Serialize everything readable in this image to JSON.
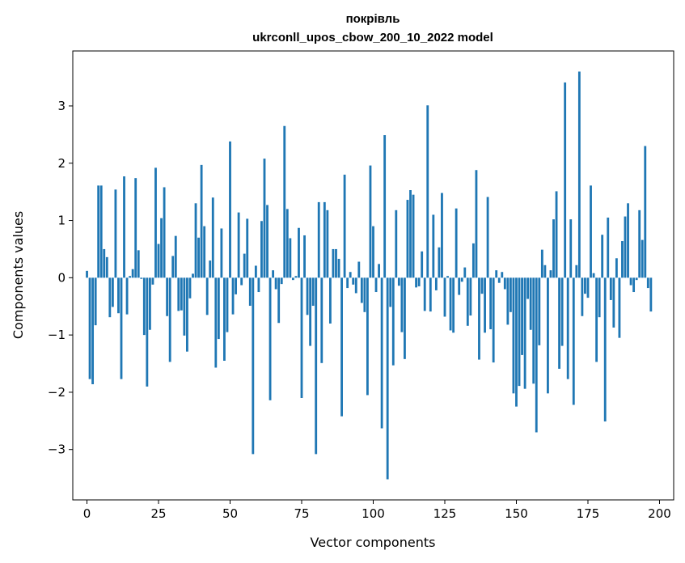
{
  "chart_data": {
    "type": "bar",
    "title": "покрівль",
    "subtitle": "ukrconll_upos_cbow_200_10_2022 model",
    "xlabel": "Vector components",
    "ylabel": "Components values",
    "xlim": [
      -4.95,
      204.95
    ],
    "ylim": [
      -3.88,
      3.96
    ],
    "xticks": [
      0,
      25,
      50,
      75,
      100,
      125,
      150,
      175,
      200
    ],
    "yticks": [
      -3,
      -2,
      -1,
      0,
      1,
      2,
      3
    ],
    "bar_color": "#1f77b4",
    "grid": false,
    "values": [
      0.12,
      -1.77,
      -1.86,
      -0.83,
      1.61,
      1.61,
      0.5,
      0.36,
      -0.69,
      -0.51,
      1.54,
      -0.62,
      -1.77,
      1.77,
      -0.64,
      0.03,
      0.15,
      1.74,
      0.48,
      -0.02,
      -1.0,
      -1.9,
      -0.91,
      -0.12,
      1.92,
      0.59,
      1.04,
      1.58,
      -0.67,
      -1.47,
      0.38,
      0.73,
      -0.58,
      -0.57,
      -1.01,
      -1.29,
      -0.36,
      0.07,
      1.3,
      0.7,
      1.97,
      0.9,
      -0.65,
      0.3,
      1.4,
      -1.57,
      -1.07,
      0.86,
      -1.45,
      -0.95,
      2.38,
      -0.64,
      -0.29,
      1.14,
      -0.13,
      0.42,
      1.03,
      -0.49,
      -3.08,
      0.21,
      -0.25,
      0.99,
      2.08,
      1.27,
      -2.14,
      0.13,
      -0.2,
      -0.79,
      -0.11,
      2.65,
      1.2,
      0.69,
      -0.04,
      0.03,
      0.87,
      -2.1,
      0.74,
      -0.65,
      -1.19,
      -0.49,
      -3.08,
      1.32,
      -1.49,
      1.32,
      1.18,
      -0.8,
      0.5,
      0.5,
      0.33,
      -2.42,
      1.8,
      -0.18,
      0.1,
      -0.12,
      -0.27,
      0.28,
      -0.44,
      -0.6,
      -2.05,
      1.96,
      0.9,
      -0.25,
      0.24,
      -2.63,
      2.49,
      -3.52,
      -0.51,
      -1.53,
      1.18,
      -0.14,
      -0.95,
      -1.42,
      1.36,
      1.53,
      1.45,
      -0.17,
      -0.15,
      0.46,
      -0.58,
      3.01,
      -0.59,
      1.1,
      -0.22,
      0.53,
      1.48,
      -0.68,
      0.03,
      -0.92,
      -0.96,
      1.21,
      -0.3,
      -0.07,
      0.18,
      -0.84,
      -0.66,
      0.6,
      1.88,
      -1.43,
      -0.28,
      -0.96,
      1.41,
      -0.9,
      -1.48,
      0.13,
      -0.09,
      0.1,
      -0.2,
      -0.82,
      -0.6,
      -2.02,
      -2.25,
      -1.89,
      -1.35,
      -1.94,
      -0.37,
      -0.91,
      -1.85,
      -2.7,
      -1.18,
      0.49,
      0.22,
      -2.02,
      0.13,
      1.02,
      1.51,
      -1.59,
      -1.19,
      3.41,
      -1.77,
      1.02,
      -2.22,
      0.22,
      3.6,
      -0.67,
      -0.28,
      -0.35,
      1.61,
      0.08,
      -1.47,
      -0.69,
      0.75,
      -2.51,
      1.05,
      -0.39,
      -0.87,
      0.34,
      -1.05,
      0.64,
      1.07,
      1.3,
      -0.13,
      -0.25,
      -0.04,
      1.18,
      0.66,
      2.3,
      -0.18,
      -0.59
    ]
  }
}
